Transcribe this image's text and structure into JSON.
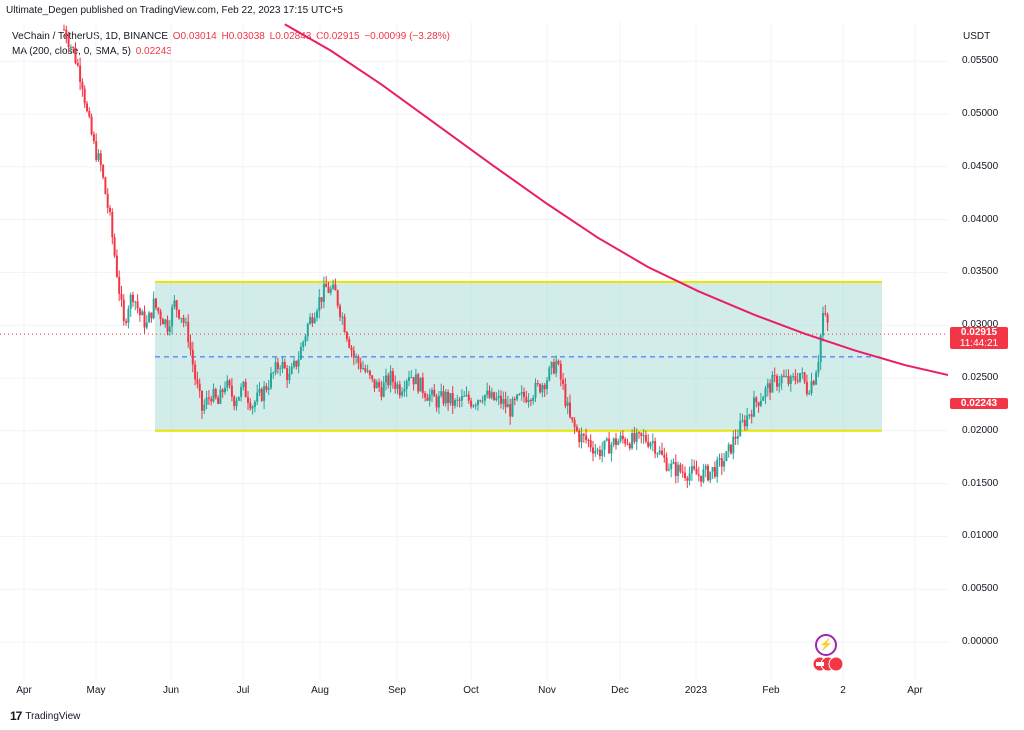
{
  "header": {
    "publisher_line": "Ultimate_Degen published on TradingView.com, Feb 22, 2023 17:15 UTC+5"
  },
  "legend": {
    "symbol": "VeChain / TetherUS, 1D, BINANCE",
    "o": "O0.03014",
    "h": "H0.03038",
    "l": "L0.02843",
    "c": "C0.02915",
    "chg": "−0.00099 (−3.28%)",
    "ma_label": "MA (200, close, 0, SMA, 5)",
    "ma_value": "0.02243"
  },
  "badges": {
    "last_price": "0.02915",
    "countdown": "11:44:21",
    "ma_price": "0.02243"
  },
  "colors": {
    "up": "#26a69a",
    "down": "#f23645",
    "ma": "#e91e63",
    "range_fill": "#b2dfdb",
    "range_border": "#e6e600",
    "midline": "#2962ff"
  },
  "footer": {
    "brand": "TradingView",
    "logo_text": "17"
  },
  "chart_data": {
    "type": "candlestick",
    "currency_label": "USDT",
    "y_ticks": [
      "0.05500",
      "0.05000",
      "0.04500",
      "0.04000",
      "0.03500",
      "0.03000",
      "0.02500",
      "0.02000",
      "0.01500",
      "0.01000",
      "0.00500",
      "0.00000"
    ],
    "x_ticks": [
      "Apr",
      "May",
      "Jun",
      "Jul",
      "Aug",
      "Sep",
      "Oct",
      "Nov",
      "Dec",
      "2023",
      "Feb",
      "2",
      "Apr"
    ],
    "ylim": [
      -0.0015,
      0.0585
    ],
    "range_box": {
      "top": 0.0341,
      "bottom": 0.02,
      "mid": 0.027
    },
    "last_price": 0.02915,
    "ma_series": [
      [
        0.0585,
        96
      ],
      [
        0.056,
        116
      ],
      [
        0.0528,
        138
      ],
      [
        0.049,
        162
      ],
      [
        0.0452,
        186
      ],
      [
        0.0415,
        210
      ],
      [
        0.0383,
        232
      ],
      [
        0.0355,
        254
      ],
      [
        0.0332,
        276
      ],
      [
        0.031,
        300
      ],
      [
        0.0292,
        322
      ],
      [
        0.0276,
        344
      ],
      [
        0.0262,
        366
      ],
      [
        0.025,
        390
      ],
      [
        0.0241,
        412
      ],
      [
        0.0234,
        440
      ],
      [
        0.0229,
        466
      ],
      [
        0.0226,
        494
      ],
      [
        0.0224,
        520
      ],
      [
        0.0224,
        526
      ]
    ],
    "price_path": [
      [
        0.058,
        0
      ],
      [
        0.056,
        4
      ],
      [
        0.053,
        8
      ],
      [
        0.05,
        10
      ],
      [
        0.047,
        13
      ],
      [
        0.045,
        16
      ],
      [
        0.04,
        20
      ],
      [
        0.035,
        23
      ],
      [
        0.03,
        26
      ],
      [
        0.032,
        28
      ],
      [
        0.033,
        30
      ],
      [
        0.031,
        33
      ],
      [
        0.03,
        36
      ],
      [
        0.032,
        39
      ],
      [
        0.031,
        42
      ],
      [
        0.03,
        45
      ],
      [
        0.032,
        48
      ],
      [
        0.031,
        51
      ],
      [
        0.029,
        54
      ],
      [
        0.025,
        57
      ],
      [
        0.022,
        60
      ],
      [
        0.0235,
        64
      ],
      [
        0.0225,
        67
      ],
      [
        0.0245,
        70
      ],
      [
        0.023,
        74
      ],
      [
        0.024,
        78
      ],
      [
        0.0225,
        82
      ],
      [
        0.0235,
        86
      ],
      [
        0.025,
        90
      ],
      [
        0.0265,
        94
      ],
      [
        0.025,
        98
      ],
      [
        0.027,
        102
      ],
      [
        0.03,
        106
      ],
      [
        0.032,
        110
      ],
      [
        0.0335,
        114
      ],
      [
        0.033,
        118
      ],
      [
        0.03,
        122
      ],
      [
        0.027,
        126
      ],
      [
        0.026,
        130
      ],
      [
        0.0245,
        134
      ],
      [
        0.024,
        138
      ],
      [
        0.025,
        142
      ],
      [
        0.024,
        146
      ],
      [
        0.0255,
        150
      ],
      [
        0.0245,
        154
      ],
      [
        0.0235,
        158
      ],
      [
        0.0228,
        162
      ],
      [
        0.0232,
        166
      ],
      [
        0.0225,
        170
      ],
      [
        0.023,
        174
      ],
      [
        0.0228,
        178
      ],
      [
        0.0235,
        182
      ],
      [
        0.023,
        186
      ],
      [
        0.0228,
        190
      ],
      [
        0.022,
        194
      ],
      [
        0.023,
        198
      ],
      [
        0.0235,
        202
      ],
      [
        0.024,
        206
      ],
      [
        0.025,
        210
      ],
      [
        0.0265,
        214
      ],
      [
        0.024,
        217
      ],
      [
        0.021,
        220
      ],
      [
        0.0195,
        224
      ],
      [
        0.019,
        228
      ],
      [
        0.018,
        232
      ],
      [
        0.0185,
        236
      ],
      [
        0.019,
        240
      ],
      [
        0.0192,
        244
      ],
      [
        0.019,
        248
      ],
      [
        0.0193,
        252
      ],
      [
        0.019,
        256
      ],
      [
        0.0175,
        260
      ],
      [
        0.0165,
        264
      ],
      [
        0.0162,
        268
      ],
      [
        0.016,
        272
      ],
      [
        0.0158,
        276
      ],
      [
        0.016,
        280
      ],
      [
        0.0165,
        284
      ],
      [
        0.0175,
        288
      ],
      [
        0.0195,
        292
      ],
      [
        0.021,
        296
      ],
      [
        0.0225,
        300
      ],
      [
        0.0235,
        304
      ],
      [
        0.0245,
        308
      ],
      [
        0.025,
        312
      ],
      [
        0.0245,
        316
      ],
      [
        0.0255,
        320
      ],
      [
        0.024,
        323
      ],
      [
        0.025,
        326
      ],
      [
        0.027,
        328
      ],
      [
        0.031,
        330
      ],
      [
        0.03,
        332
      ],
      [
        0.0292,
        333
      ]
    ]
  }
}
